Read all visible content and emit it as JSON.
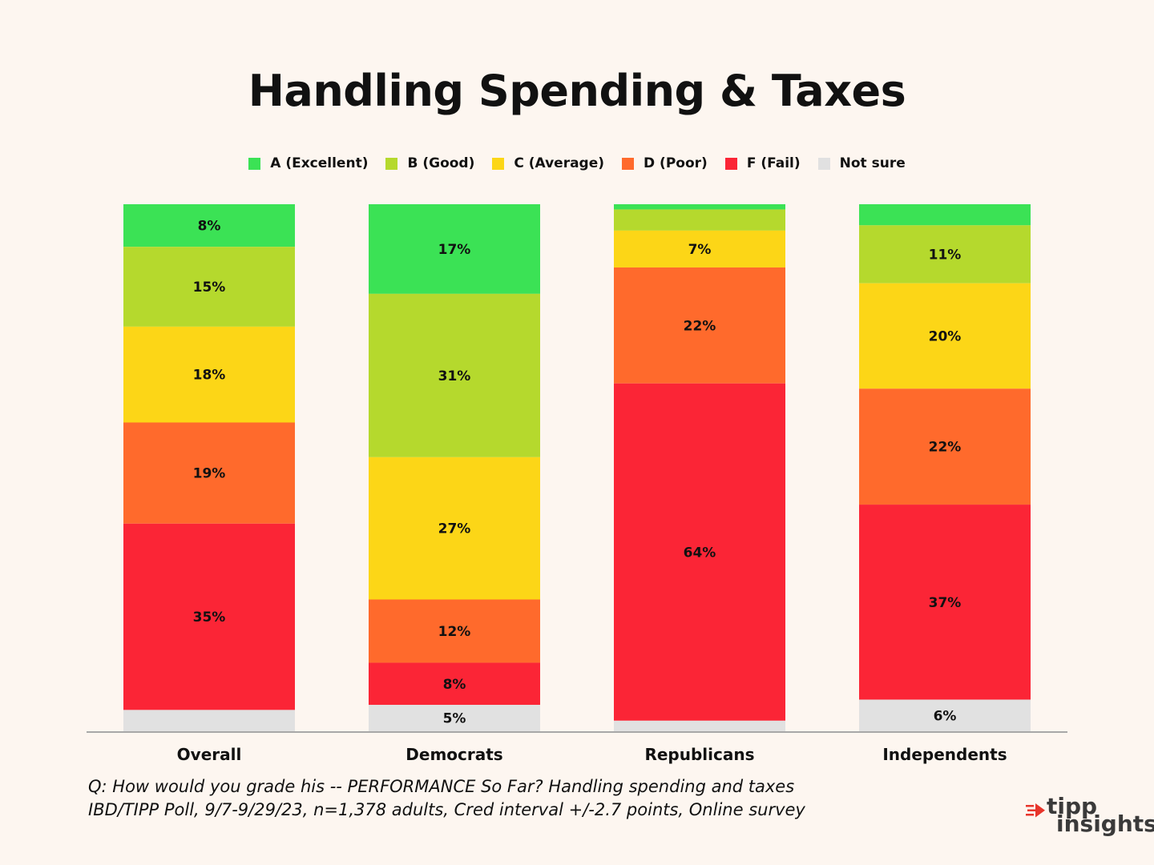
{
  "chart_data": {
    "type": "bar",
    "stacked": true,
    "title": "Handling Spending & Taxes",
    "categories": [
      "Overall",
      "Democrats",
      "Republicans",
      "Independents"
    ],
    "series": [
      {
        "name": "A (Excellent)",
        "color": "#3be255",
        "values": [
          8,
          17,
          1,
          4
        ],
        "labels": [
          "8%",
          "17%",
          "",
          ""
        ]
      },
      {
        "name": "B (Good)",
        "color": "#b5d92d",
        "values": [
          15,
          31,
          4,
          11
        ],
        "labels": [
          "15%",
          "31%",
          "",
          "11%"
        ]
      },
      {
        "name": "C (Average)",
        "color": "#fcd617",
        "values": [
          18,
          27,
          7,
          20
        ],
        "labels": [
          "18%",
          "27%",
          "7%",
          "20%"
        ]
      },
      {
        "name": "D (Poor)",
        "color": "#ff6a2c",
        "values": [
          19,
          12,
          22,
          22
        ],
        "labels": [
          "19%",
          "12%",
          "22%",
          "22%"
        ]
      },
      {
        "name": "F (Fail)",
        "color": "#fb2536",
        "values": [
          35,
          8,
          64,
          37
        ],
        "labels": [
          "35%",
          "8%",
          "64%",
          "37%"
        ]
      },
      {
        "name": "Not sure",
        "color": "#e1e1e1",
        "values": [
          4,
          5,
          2,
          6
        ],
        "labels": [
          "",
          "5%",
          "",
          "6%"
        ]
      }
    ],
    "legend_position": "top",
    "grid": false
  },
  "footnote": {
    "line1": "Q:  How would you grade his -- PERFORMANCE So Far? Handling spending and taxes",
    "line2": "IBD/TIPP Poll, 9/7-9/29/23, n=1,378 adults, Cred interval +/-2.7 points, Online survey"
  },
  "logo": {
    "word1": "tipp",
    "word2": "insights",
    "accent": "#e8352b"
  }
}
